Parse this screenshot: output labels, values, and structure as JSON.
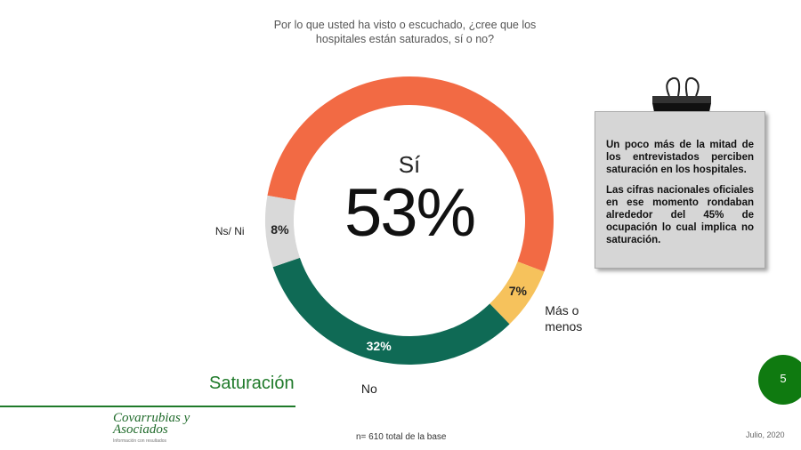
{
  "header": {
    "question": "Por lo que usted ha visto o escuchado, ¿cree que los hospitales están saturados, sí o no?"
  },
  "chart_data": {
    "type": "donut",
    "categories": [
      "Sí",
      "Más o menos",
      "No",
      "Ns/ Ni"
    ],
    "values": [
      53,
      7,
      32,
      8
    ],
    "value_labels": [
      "53%",
      "7%",
      "32%",
      "8%"
    ],
    "colors": [
      "#f26a44",
      "#f6c25c",
      "#0f6a55",
      "#d9d9d9"
    ]
  },
  "note": {
    "paragraphs": [
      "Un poco más de la mitad de los entrevistados perciben saturación en los hospitales.",
      "Las cifras nacionales oficiales en ese momento rondaban alrededor del 45% de ocupación lo cual implica no saturación."
    ]
  },
  "footer": {
    "section": "Saturación",
    "page": "5",
    "sample": "n= 610 total de la base",
    "date": "Julio, 2020",
    "logo": "Covarrubias y Asociados",
    "tagline": "Información con resultados"
  }
}
